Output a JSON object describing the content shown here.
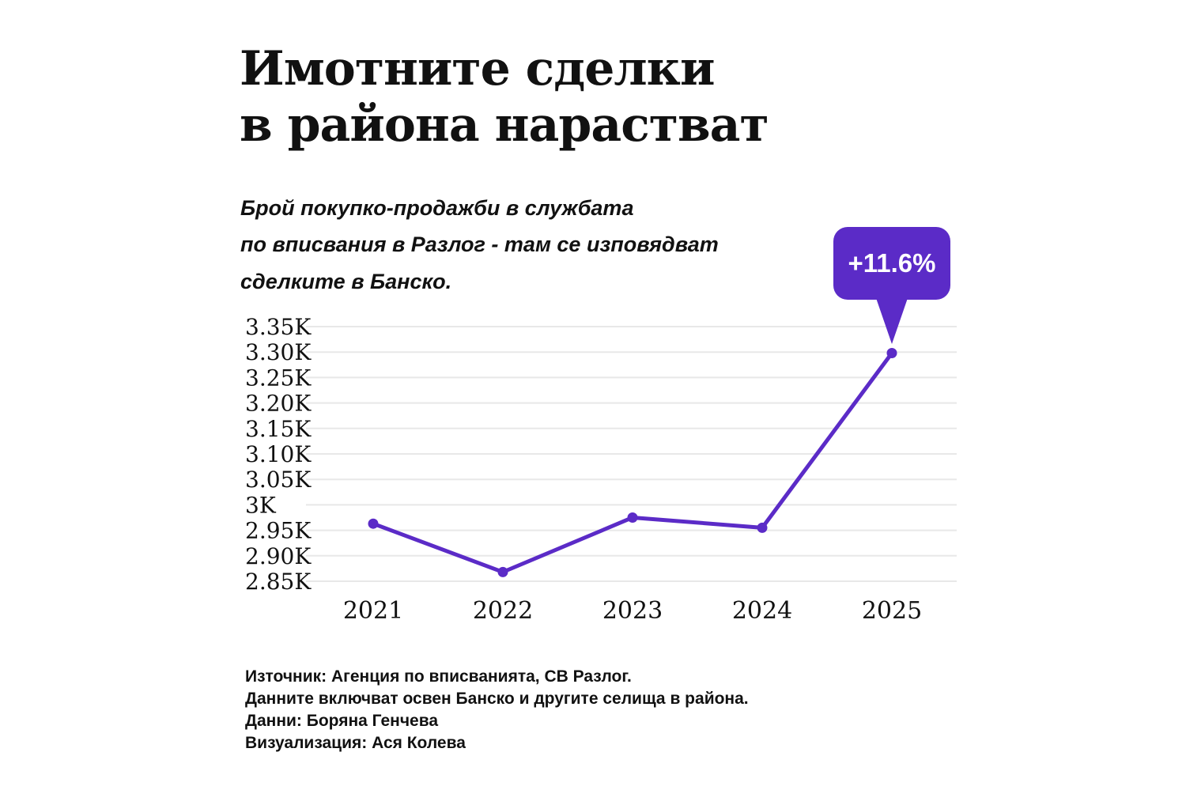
{
  "title": {
    "line1": "Имотните сделки",
    "line2": "в района нарастват"
  },
  "subtitle": {
    "lines": [
      "Брой покупко-продажби в службата",
      "по вписвания в Разлог - там се изповядват",
      "сделките в Банско."
    ]
  },
  "chart_data": {
    "type": "line",
    "title": "Брой покупко-продажби в службата по вписвания в Разлог",
    "categories": [
      "2021",
      "2022",
      "2023",
      "2024",
      "2025"
    ],
    "series": [
      {
        "name": "Брой покупко-продажби",
        "values": [
          2963,
          2868,
          2975,
          2955,
          3298
        ]
      }
    ],
    "annotation": {
      "label": "+11.6%",
      "target_category": "2025"
    },
    "yticks": [
      2850,
      2900,
      2950,
      3000,
      3050,
      3100,
      3150,
      3200,
      3250,
      3300,
      3350
    ],
    "ytick_labels": [
      "2.85K",
      "2.90K",
      "2.95K",
      "3K",
      "3.05K",
      "3.10K",
      "3.15K",
      "3.20K",
      "3.25K",
      "3.30K",
      "3.35K"
    ],
    "ylim": [
      2822,
      3378
    ],
    "grid": true,
    "legend": false,
    "line_color": "#5b2bc7",
    "point_color": "#5b2bc7",
    "grid_color": "#e8e8e8",
    "text_color": "#111111"
  },
  "footer": {
    "lines": [
      "Източник: Агенция по вписванията, СВ Разлог.",
      "Данните включват освен Банско и другите селища в района.",
      "Данни: Боряна Генчева",
      "Визуализация: Ася Колева"
    ]
  }
}
